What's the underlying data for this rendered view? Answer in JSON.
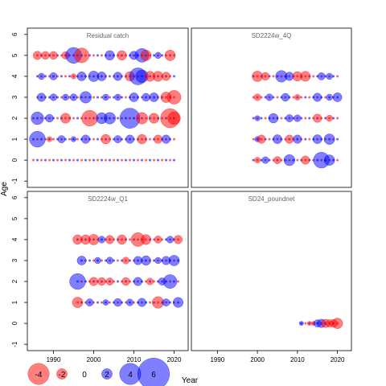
{
  "chart_data": {
    "type": "scatter",
    "title": "",
    "xlabel": "Year",
    "ylabel": "Age",
    "xlim": [
      1983.5,
      2023.5
    ],
    "ylim": [
      -1.3,
      6.3
    ],
    "xticks": [
      1990,
      2000,
      2010,
      2020
    ],
    "yticks": [
      -1,
      0,
      1,
      2,
      3,
      4,
      5,
      6
    ],
    "grid": false,
    "bubble_size": "proportional to |residual|",
    "colors": {
      "negative": "#ff0000",
      "positive": "#0000ff"
    },
    "legend": {
      "placement": "bottom-left",
      "values": [
        -4,
        -2,
        0,
        2,
        4,
        6
      ],
      "labels": [
        "-4",
        "-2",
        "0",
        "2",
        "4",
        "6"
      ]
    },
    "panels": [
      {
        "name": "Residual catch",
        "row_years": {
          "0": [
            1985,
            2020
          ],
          "1": [
            1985,
            2020
          ],
          "2": [
            1985,
            2020
          ],
          "3": [
            1986,
            2020
          ],
          "4": [
            1986,
            2020
          ],
          "5": [
            1986,
            2020
          ]
        },
        "points": [
          {
            "age": 5,
            "year": 1986,
            "r": -1.6
          },
          {
            "age": 5,
            "year": 1988,
            "r": -1.5
          },
          {
            "age": 5,
            "year": 1990,
            "r": -1.5
          },
          {
            "age": 5,
            "year": 1993,
            "r": -1.4
          },
          {
            "age": 5,
            "year": 1995,
            "r": 3.0
          },
          {
            "age": 5,
            "year": 1997,
            "r": -2.8
          },
          {
            "age": 5,
            "year": 2004,
            "r": 1.8
          },
          {
            "age": 5,
            "year": 2007,
            "r": -1.8
          },
          {
            "age": 5,
            "year": 2010,
            "r": 1.6
          },
          {
            "age": 5,
            "year": 2012,
            "r": 2.6
          },
          {
            "age": 5,
            "year": 2013,
            "r": -2.0
          },
          {
            "age": 5,
            "year": 2016,
            "r": 1.2
          },
          {
            "age": 5,
            "year": 2019,
            "r": -2.0
          },
          {
            "age": 4,
            "year": 1987,
            "r": 1.2
          },
          {
            "age": 4,
            "year": 1990,
            "r": 1.4
          },
          {
            "age": 4,
            "year": 1995,
            "r": -1.0
          },
          {
            "age": 4,
            "year": 1997,
            "r": 1.7
          },
          {
            "age": 4,
            "year": 2000,
            "r": 2.0
          },
          {
            "age": 4,
            "year": 2002,
            "r": 1.7
          },
          {
            "age": 4,
            "year": 2006,
            "r": 1.6
          },
          {
            "age": 4,
            "year": 2009,
            "r": -1.8
          },
          {
            "age": 4,
            "year": 2011,
            "r": 3.2
          },
          {
            "age": 4,
            "year": 2012,
            "r": 2.4
          },
          {
            "age": 4,
            "year": 2014,
            "r": -1.9
          },
          {
            "age": 4,
            "year": 2016,
            "r": -1.9
          },
          {
            "age": 4,
            "year": 2018,
            "r": -1.6
          },
          {
            "age": 3,
            "year": 1987,
            "r": 1.6
          },
          {
            "age": 3,
            "year": 1990,
            "r": 1.3
          },
          {
            "age": 3,
            "year": 1993,
            "r": 1.2
          },
          {
            "age": 3,
            "year": 1995,
            "r": 1.3
          },
          {
            "age": 3,
            "year": 1998,
            "r": 2.2
          },
          {
            "age": 3,
            "year": 2003,
            "r": 1.2
          },
          {
            "age": 3,
            "year": 2006,
            "r": 1.2
          },
          {
            "age": 3,
            "year": 2010,
            "r": 1.7
          },
          {
            "age": 3,
            "year": 2013,
            "r": 1.5
          },
          {
            "age": 3,
            "year": 2015,
            "r": 1.7
          },
          {
            "age": 3,
            "year": 2018,
            "r": -2.0
          },
          {
            "age": 3,
            "year": 2020,
            "r": -2.6
          },
          {
            "age": 2,
            "year": 1986,
            "r": 2.4
          },
          {
            "age": 2,
            "year": 1989,
            "r": 1.5
          },
          {
            "age": 2,
            "year": 1993,
            "r": -1.9
          },
          {
            "age": 2,
            "year": 1999,
            "r": -3.0
          },
          {
            "age": 2,
            "year": 2002,
            "r": 2.1
          },
          {
            "age": 2,
            "year": 2004,
            "r": 2.2
          },
          {
            "age": 2,
            "year": 2009,
            "r": 3.8
          },
          {
            "age": 2,
            "year": 2012,
            "r": -2.2
          },
          {
            "age": 2,
            "year": 2015,
            "r": -1.9
          },
          {
            "age": 2,
            "year": 2019,
            "r": -3.6
          },
          {
            "age": 2,
            "year": 2020,
            "r": -2.4
          },
          {
            "age": 1,
            "year": 1986,
            "r": 3.0
          },
          {
            "age": 1,
            "year": 1989,
            "r": -1.0
          },
          {
            "age": 1,
            "year": 1992,
            "r": 1.4
          },
          {
            "age": 1,
            "year": 1995,
            "r": 1.0
          },
          {
            "age": 1,
            "year": 1998,
            "r": 1.6
          },
          {
            "age": 1,
            "year": 2003,
            "r": -1.8
          },
          {
            "age": 1,
            "year": 2006,
            "r": 1.4
          },
          {
            "age": 1,
            "year": 2009,
            "r": 1.6
          },
          {
            "age": 1,
            "year": 2012,
            "r": -1.8
          },
          {
            "age": 1,
            "year": 2016,
            "r": -1.6
          },
          {
            "age": 1,
            "year": 2018,
            "r": 1.6
          }
        ]
      },
      {
        "name": "SD2224w_4Q",
        "row_years": {
          "0": [
            1999,
            2020
          ],
          "1": [
            1999,
            2020
          ],
          "2": [
            1999,
            2020
          ],
          "3": [
            1999,
            2020
          ],
          "4": [
            1999,
            2020
          ]
        },
        "points": [
          {
            "age": 4,
            "year": 2000,
            "r": -2.0
          },
          {
            "age": 4,
            "year": 2002,
            "r": -1.5
          },
          {
            "age": 4,
            "year": 2006,
            "r": 2.2
          },
          {
            "age": 4,
            "year": 2008,
            "r": 1.6
          },
          {
            "age": 4,
            "year": 2010,
            "r": -1.8
          },
          {
            "age": 4,
            "year": 2012,
            "r": -1.9
          },
          {
            "age": 4,
            "year": 2016,
            "r": 1.4
          },
          {
            "age": 4,
            "year": 2018,
            "r": 1.2
          },
          {
            "age": 3,
            "year": 2000,
            "r": -1.3
          },
          {
            "age": 3,
            "year": 2003,
            "r": 1.3
          },
          {
            "age": 3,
            "year": 2007,
            "r": 1.5
          },
          {
            "age": 3,
            "year": 2010,
            "r": -1.1
          },
          {
            "age": 3,
            "year": 2015,
            "r": 1.6
          },
          {
            "age": 3,
            "year": 2018,
            "r": 1.2
          },
          {
            "age": 3,
            "year": 2020,
            "r": 1.7
          },
          {
            "age": 2,
            "year": 2000,
            "r": 1.0
          },
          {
            "age": 2,
            "year": 2004,
            "r": 1.8
          },
          {
            "age": 2,
            "year": 2008,
            "r": 1.4
          },
          {
            "age": 2,
            "year": 2010,
            "r": 1.3
          },
          {
            "age": 2,
            "year": 2015,
            "r": -1.6
          },
          {
            "age": 2,
            "year": 2018,
            "r": -1.2
          },
          {
            "age": 1,
            "year": 2000,
            "r": 1.0
          },
          {
            "age": 1,
            "year": 2001,
            "r": -1.6
          },
          {
            "age": 1,
            "year": 2005,
            "r": 1.7
          },
          {
            "age": 1,
            "year": 2008,
            "r": -1.6
          },
          {
            "age": 1,
            "year": 2010,
            "r": 1.6
          },
          {
            "age": 1,
            "year": 2015,
            "r": 1.7
          },
          {
            "age": 1,
            "year": 2018,
            "r": 2.0
          },
          {
            "age": 0,
            "year": 2000,
            "r": -1.1
          },
          {
            "age": 0,
            "year": 2002,
            "r": 1.3
          },
          {
            "age": 0,
            "year": 2005,
            "r": -1.4
          },
          {
            "age": 0,
            "year": 2008,
            "r": 2.1
          },
          {
            "age": 0,
            "year": 2012,
            "r": -1.6
          },
          {
            "age": 0,
            "year": 2016,
            "r": 3.0
          },
          {
            "age": 0,
            "year": 2018,
            "r": 2.0
          }
        ]
      },
      {
        "name": "SD2224w_Q1",
        "row_years": {
          "1": [
            1996,
            2021
          ],
          "2": [
            1996,
            2021
          ],
          "3": [
            1997,
            2021
          ],
          "4": [
            1996,
            2021
          ]
        },
        "points": [
          {
            "age": 4,
            "year": 1996,
            "r": -1.8
          },
          {
            "age": 4,
            "year": 1998,
            "r": -1.8
          },
          {
            "age": 4,
            "year": 2000,
            "r": -2.0
          },
          {
            "age": 4,
            "year": 2002,
            "r": 1.3
          },
          {
            "age": 4,
            "year": 2004,
            "r": -1.6
          },
          {
            "age": 4,
            "year": 2007,
            "r": -1.8
          },
          {
            "age": 4,
            "year": 2011,
            "r": -2.6
          },
          {
            "age": 4,
            "year": 2013,
            "r": -1.9
          },
          {
            "age": 4,
            "year": 2016,
            "r": -1.4
          },
          {
            "age": 4,
            "year": 2019,
            "r": 1.3
          },
          {
            "age": 4,
            "year": 2021,
            "r": -1.6
          },
          {
            "age": 3,
            "year": 1997,
            "r": 1.7
          },
          {
            "age": 3,
            "year": 2001,
            "r": 1.2
          },
          {
            "age": 3,
            "year": 2004,
            "r": 1.3
          },
          {
            "age": 3,
            "year": 2008,
            "r": -1.3
          },
          {
            "age": 3,
            "year": 2011,
            "r": 1.6
          },
          {
            "age": 3,
            "year": 2013,
            "r": 1.8
          },
          {
            "age": 3,
            "year": 2016,
            "r": 1.2
          },
          {
            "age": 3,
            "year": 2018,
            "r": 1.6
          },
          {
            "age": 3,
            "year": 2020,
            "r": 2.0
          },
          {
            "age": 2,
            "year": 1996,
            "r": 3.0
          },
          {
            "age": 2,
            "year": 2000,
            "r": -1.6
          },
          {
            "age": 2,
            "year": 2002,
            "r": -1.5
          },
          {
            "age": 2,
            "year": 2004,
            "r": -1.4
          },
          {
            "age": 2,
            "year": 2008,
            "r": -1.5
          },
          {
            "age": 2,
            "year": 2011,
            "r": 1.6
          },
          {
            "age": 2,
            "year": 2014,
            "r": -1.3
          },
          {
            "age": 2,
            "year": 2017,
            "r": 1.4
          },
          {
            "age": 2,
            "year": 2019,
            "r": 2.6
          },
          {
            "age": 1,
            "year": 1996,
            "r": -2.0
          },
          {
            "age": 1,
            "year": 1999,
            "r": 1.4
          },
          {
            "age": 1,
            "year": 2003,
            "r": 1.1
          },
          {
            "age": 1,
            "year": 2006,
            "r": 1.5
          },
          {
            "age": 1,
            "year": 2009,
            "r": 1.3
          },
          {
            "age": 1,
            "year": 2012,
            "r": 1.6
          },
          {
            "age": 1,
            "year": 2016,
            "r": -2.2
          },
          {
            "age": 1,
            "year": 2018,
            "r": 1.4
          },
          {
            "age": 1,
            "year": 2021,
            "r": 1.9
          }
        ]
      },
      {
        "name": "SD24_poundnet",
        "row_years": {
          "0": [
            2011,
            2020
          ]
        },
        "points": [
          {
            "age": 0,
            "year": 2011,
            "r": 0.8
          },
          {
            "age": 0,
            "year": 2013,
            "r": -0.8
          },
          {
            "age": 0,
            "year": 2014,
            "r": -0.8
          },
          {
            "age": 0,
            "year": 2015,
            "r": 1.4
          },
          {
            "age": 0,
            "year": 2016,
            "r": 1.6
          },
          {
            "age": 0,
            "year": 2017,
            "r": -1.6
          },
          {
            "age": 0,
            "year": 2018,
            "r": -1.4
          },
          {
            "age": 0,
            "year": 2019,
            "r": -1.5
          },
          {
            "age": 0,
            "year": 2020,
            "r": -2.0
          }
        ]
      }
    ]
  }
}
